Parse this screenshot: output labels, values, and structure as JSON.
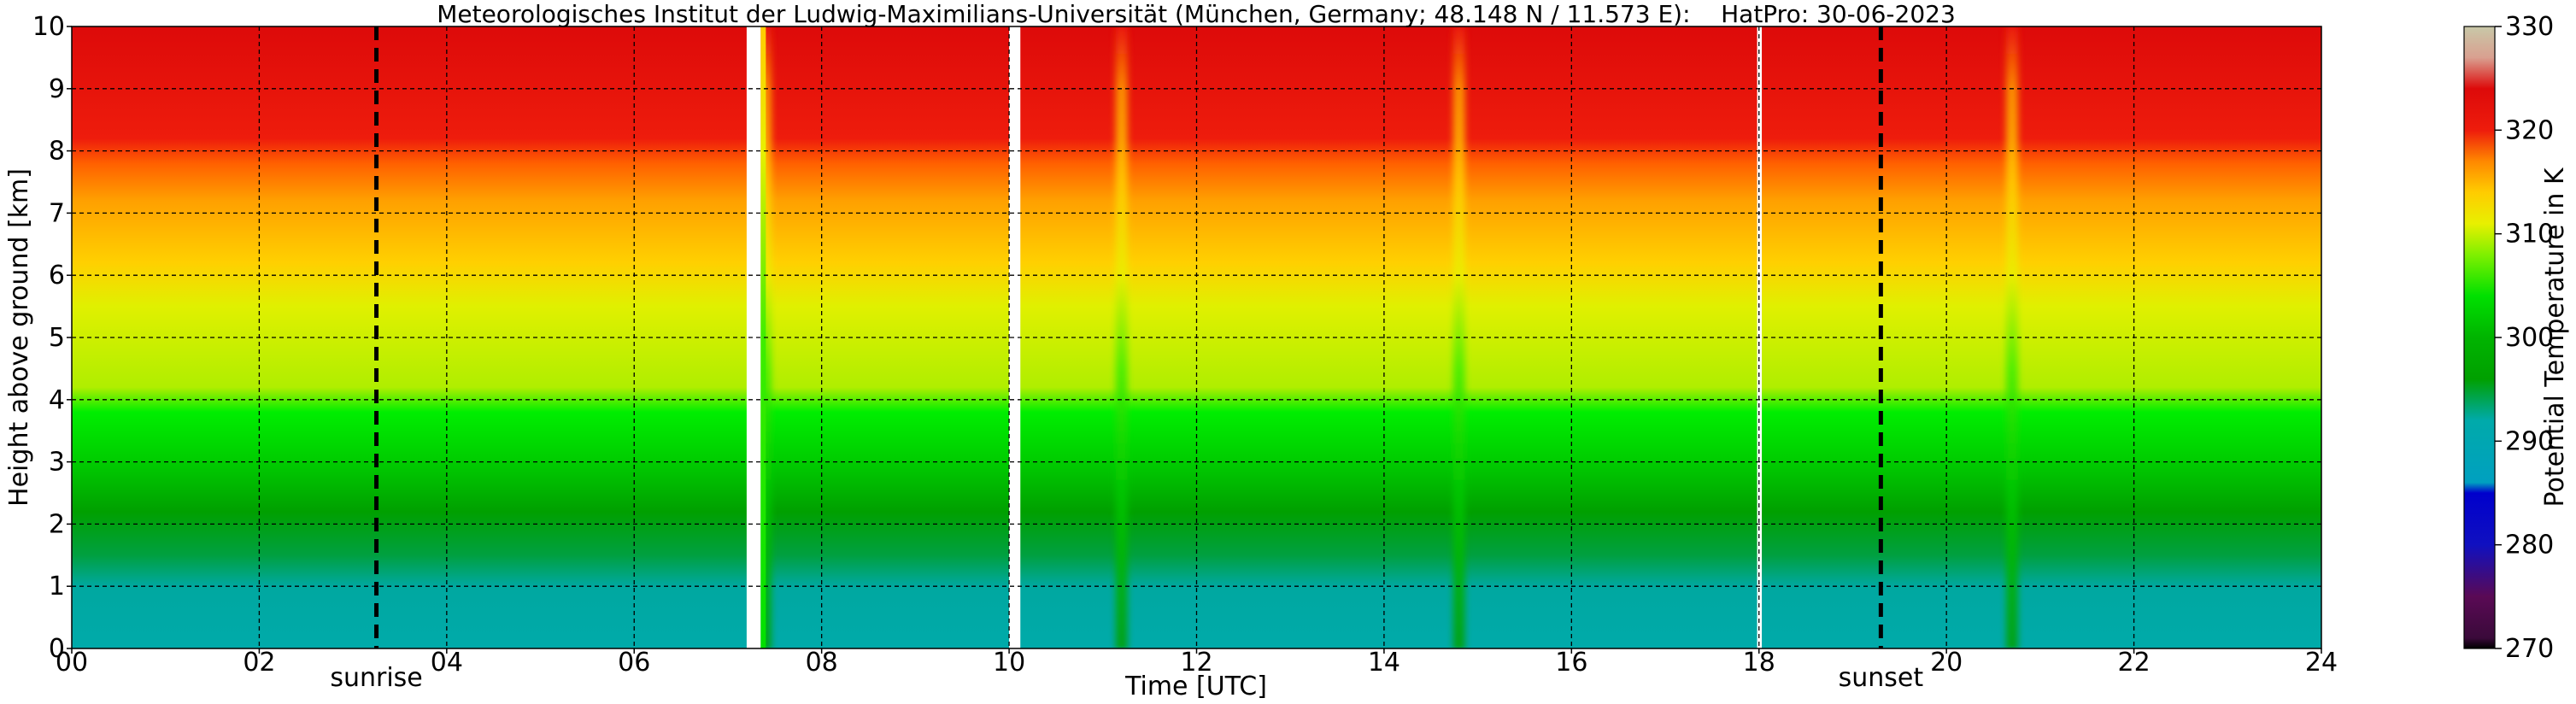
{
  "chart_data": {
    "type": "heatmap",
    "title": "Meteorologisches Institut der Ludwig-Maximilians-Universität (München, Germany; 48.148 N / 11.573 E):    HatPro: 30-06-2023",
    "xlabel": "Time [UTC]",
    "ylabel": "Height above ground [km]",
    "xlim": [
      0,
      24
    ],
    "ylim": [
      0,
      10
    ],
    "x_ticks": [
      "00",
      "02",
      "04",
      "06",
      "08",
      "10",
      "12",
      "14",
      "16",
      "18",
      "20",
      "22",
      "24"
    ],
    "y_ticks": [
      "0",
      "1",
      "2",
      "3",
      "4",
      "5",
      "6",
      "7",
      "8",
      "9",
      "10"
    ],
    "grid": true,
    "colorbar": {
      "label": "Potential Temperature in K",
      "range": [
        270,
        330
      ],
      "ticks": [
        "270",
        "280",
        "290",
        "300",
        "310",
        "320",
        "330"
      ],
      "stops": [
        {
          "value": 270,
          "color": "#000000"
        },
        {
          "value": 271,
          "color": "#3a0a3a"
        },
        {
          "value": 275,
          "color": "#5a0a55"
        },
        {
          "value": 280,
          "color": "#1010c0"
        },
        {
          "value": 285,
          "color": "#0000cc"
        },
        {
          "value": 286,
          "color": "#00a0c0"
        },
        {
          "value": 292,
          "color": "#00aaaa"
        },
        {
          "value": 296,
          "color": "#00a000"
        },
        {
          "value": 300,
          "color": "#00b400"
        },
        {
          "value": 304,
          "color": "#00e000"
        },
        {
          "value": 308,
          "color": "#80f000"
        },
        {
          "value": 311,
          "color": "#e8f000"
        },
        {
          "value": 314,
          "color": "#ffcc00"
        },
        {
          "value": 317,
          "color": "#ff8800"
        },
        {
          "value": 320,
          "color": "#ee1c0c"
        },
        {
          "value": 324,
          "color": "#dd0a0a"
        },
        {
          "value": 327,
          "color": "#d9a090"
        },
        {
          "value": 330,
          "color": "#c8c8a8"
        }
      ]
    },
    "base_profile": [
      {
        "height_km": 0.0,
        "theta_K": 293
      },
      {
        "height_km": 1.0,
        "theta_K": 295
      },
      {
        "height_km": 1.5,
        "theta_K": 297
      },
      {
        "height_km": 2.0,
        "theta_K": 298
      },
      {
        "height_km": 3.0,
        "theta_K": 300
      },
      {
        "height_km": 4.0,
        "theta_K": 305
      },
      {
        "height_km": 5.0,
        "theta_K": 310
      },
      {
        "height_km": 6.0,
        "theta_K": 312
      },
      {
        "height_km": 7.0,
        "theta_K": 316
      },
      {
        "height_km": 8.0,
        "theta_K": 320
      },
      {
        "height_km": 9.0,
        "theta_K": 322
      },
      {
        "height_km": 10.0,
        "theta_K": 325
      }
    ],
    "data_gaps_utc": [
      {
        "start": 7.2,
        "end": 7.35
      },
      {
        "start": 10.0,
        "end": 10.12
      },
      {
        "start": 17.98,
        "end": 18.03
      }
    ],
    "events": [
      {
        "time_utc": 3.25,
        "label": "sunrise"
      },
      {
        "time_utc": 19.3,
        "label": "sunset"
      }
    ],
    "features": [
      {
        "time_utc": 7.4,
        "note": "column"
      },
      {
        "time_utc": 11.2,
        "note": "column"
      },
      {
        "time_utc": 14.8,
        "note": "column"
      },
      {
        "time_utc": 20.7,
        "note": "column"
      }
    ]
  }
}
